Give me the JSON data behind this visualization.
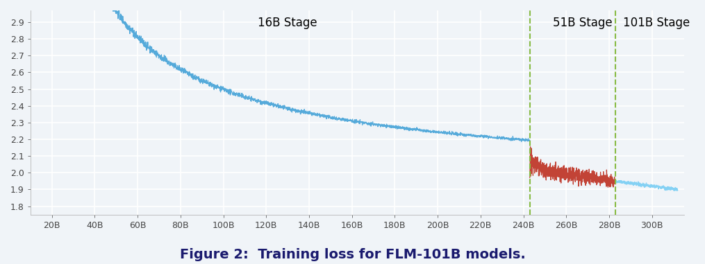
{
  "title": "Figure 2:  Training loss for FLM-101B models.",
  "title_fontsize": 14,
  "title_bold": true,
  "stage_labels": [
    "16B Stage",
    "51B Stage",
    "101B Stage"
  ],
  "stage_label_fontsize": 12,
  "vline1_x": 243,
  "vline2_x": 283,
  "vline_color": "#88bb44",
  "vline_style": "--",
  "xmin": 10,
  "xmax": 315,
  "ymin": 1.75,
  "ymax": 2.97,
  "xticks": [
    20,
    40,
    60,
    80,
    100,
    120,
    140,
    160,
    180,
    200,
    220,
    240,
    260,
    280,
    300
  ],
  "xtick_labels": [
    "20B",
    "40B",
    "60B",
    "80B",
    "100B",
    "120B",
    "140B",
    "160B",
    "180B",
    "200B",
    "220B",
    "240B",
    "260B",
    "280B",
    "300B"
  ],
  "yticks": [
    1.8,
    1.9,
    2.0,
    2.1,
    2.2,
    2.3,
    2.4,
    2.5,
    2.6,
    2.7,
    2.8,
    2.9
  ],
  "blue_color": "#4da6d9",
  "red_color": "#c0392b",
  "light_blue_color": "#7ecff4",
  "bg_color": "#f0f4f8",
  "grid_color": "#ffffff",
  "noise_seed": 42
}
